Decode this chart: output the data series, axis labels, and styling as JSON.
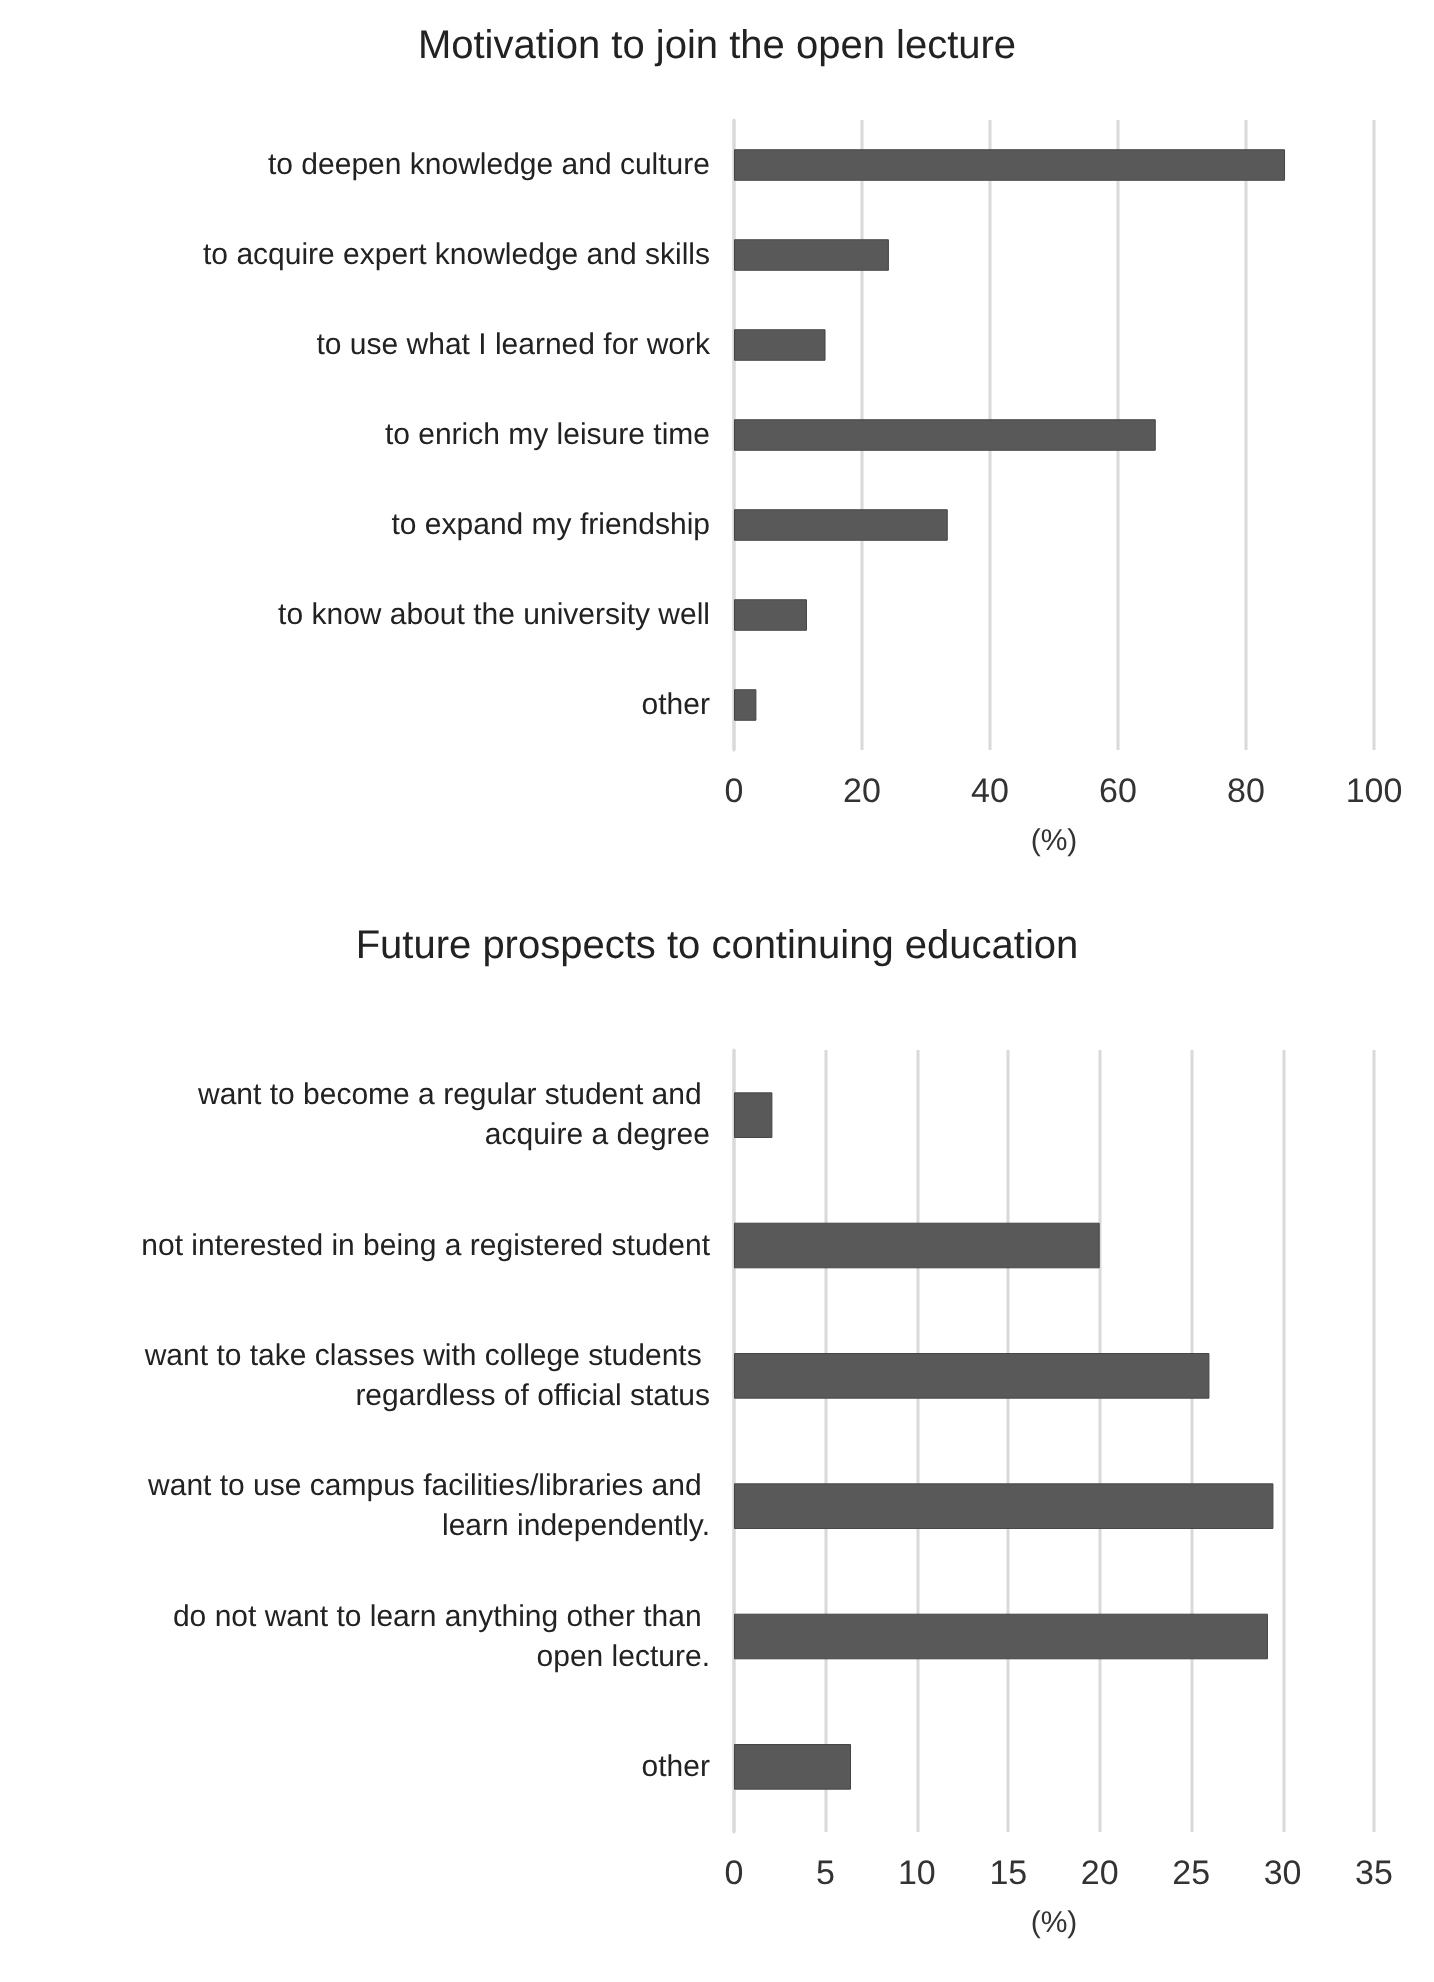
{
  "chart_data": [
    {
      "type": "bar",
      "orientation": "horizontal",
      "title": "Motivation to join the open lecture",
      "xlabel": "(%)",
      "categories": [
        "to deepen knowledge and culture",
        "to acquire expert knowledge and skills",
        "to use what I learned for work",
        "to enrich my leisure time",
        "to expand my friendship",
        "to know about the university well",
        "other"
      ],
      "values": [
        86.1,
        24.2,
        14.3,
        65.9,
        33.4,
        11.4,
        3.5
      ],
      "color": "#595959",
      "xlim": [
        0,
        100
      ],
      "xticks": [
        0,
        20,
        40,
        60,
        80,
        100
      ],
      "grid": "x"
    },
    {
      "type": "bar",
      "orientation": "horizontal",
      "title": "Future prospects to continuing education",
      "xlabel": "(%)",
      "categories": [
        "want to become a regular student and acquire a degree",
        "not interested in being a registered student",
        "want to take classes with college students regardless of official status",
        "want to use campus facilities/libraries and learn independently.",
        "do not want to learn anything other than open lecture.",
        "other"
      ],
      "values": [
        2.1,
        20.0,
        26.0,
        29.5,
        29.2,
        6.4
      ],
      "color": "#595959",
      "xlim": [
        0,
        35
      ],
      "xticks": [
        0,
        5,
        10,
        15,
        20,
        25,
        30,
        35
      ],
      "grid": "x"
    }
  ]
}
